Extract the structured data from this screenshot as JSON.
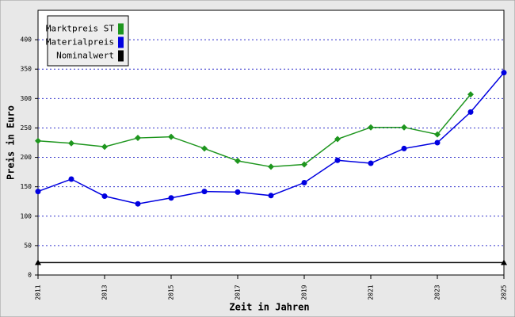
{
  "chart_data": {
    "type": "line",
    "x_label": "Zeit in Jahren",
    "y_label": "Preis in Euro",
    "x": [
      2011,
      2012,
      2013,
      2014,
      2015,
      2016,
      2017,
      2018,
      2019,
      2020,
      2021,
      2022,
      2023,
      2024,
      2025
    ],
    "series": [
      {
        "name": "Marktpreis ST",
        "color": "#1e961e",
        "marker": "diamond",
        "values": [
          228,
          224,
          218,
          233,
          235,
          215,
          194,
          184,
          188,
          231,
          251,
          251,
          239,
          307,
          null
        ]
      },
      {
        "name": "Materialpreis",
        "color": "#0000e0",
        "marker": "circle",
        "values": [
          142,
          163,
          134,
          121,
          131,
          142,
          141,
          135,
          157,
          195,
          190,
          215,
          225,
          277,
          344
        ]
      },
      {
        "name": "Nominalwert",
        "color": "#000000",
        "marker": "triangle",
        "x": [
          2011,
          2025
        ],
        "values": [
          21,
          21
        ]
      }
    ],
    "xlim": [
      2011,
      2025
    ],
    "xticks": [
      2011,
      2013,
      2015,
      2017,
      2019,
      2021,
      2023,
      2025
    ],
    "ylim": [
      0,
      450
    ],
    "yticks": [
      0,
      50,
      100,
      150,
      200,
      250,
      300,
      350,
      400
    ],
    "grid": true,
    "legend": "top-left"
  }
}
